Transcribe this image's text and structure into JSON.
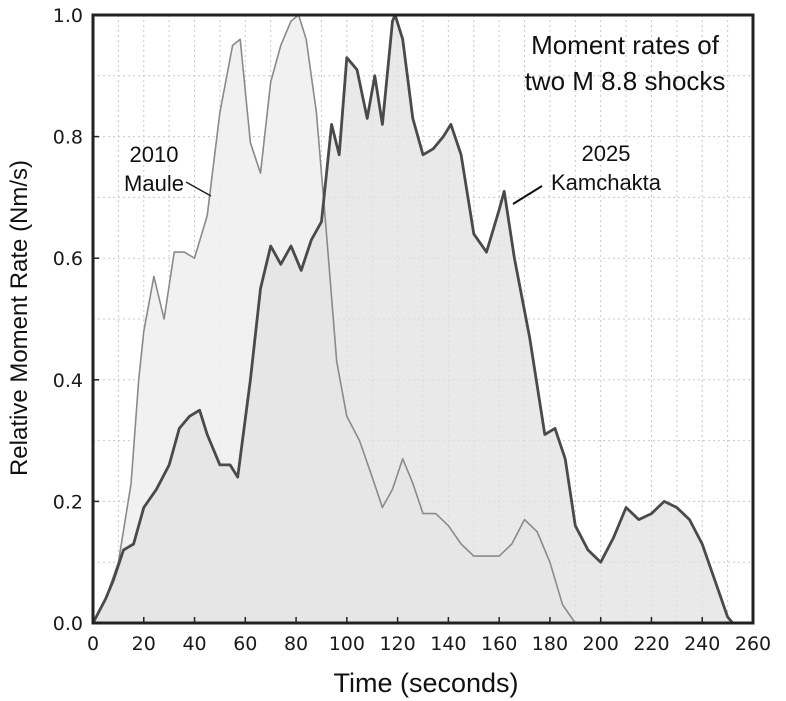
{
  "chart_data": {
    "type": "area",
    "title_lines": [
      "Moment rates of",
      "two M 8.8 shocks"
    ],
    "xlabel": "Time (seconds)",
    "ylabel": "Relative Moment Rate (Nm/s)",
    "xlim": [
      0,
      260
    ],
    "ylim": [
      0,
      1.0
    ],
    "x_ticks": [
      "0",
      "20",
      "40",
      "60",
      "80",
      "100",
      "120",
      "140",
      "160",
      "180",
      "200",
      "220",
      "240",
      "260"
    ],
    "y_ticks": [
      "0.0",
      "0.2",
      "0.4",
      "0.6",
      "0.8",
      "1.0"
    ],
    "grid": true,
    "series": [
      {
        "name": "2010 Maule",
        "label_lines": [
          "2010",
          "Maule"
        ],
        "color": "#8a8a8a",
        "fill": "#efefef",
        "x": [
          0,
          5,
          10,
          15,
          18,
          20,
          24,
          28,
          32,
          36,
          40,
          45,
          50,
          55,
          58,
          62,
          66,
          70,
          74,
          78,
          81,
          84,
          88,
          92,
          96,
          100,
          105,
          110,
          114,
          118,
          122,
          126,
          130,
          135,
          140,
          145,
          150,
          155,
          160,
          165,
          170,
          175,
          180,
          185,
          190
        ],
        "y": [
          0.0,
          0.04,
          0.1,
          0.23,
          0.4,
          0.48,
          0.57,
          0.5,
          0.61,
          0.61,
          0.6,
          0.67,
          0.84,
          0.95,
          0.96,
          0.79,
          0.74,
          0.89,
          0.95,
          0.99,
          1.0,
          0.96,
          0.84,
          0.64,
          0.43,
          0.34,
          0.3,
          0.24,
          0.19,
          0.22,
          0.27,
          0.23,
          0.18,
          0.18,
          0.16,
          0.13,
          0.11,
          0.11,
          0.11,
          0.13,
          0.17,
          0.15,
          0.1,
          0.03,
          0.0
        ]
      },
      {
        "name": "2025 Kamchakta",
        "label_lines": [
          "2025",
          "Kamchakta"
        ],
        "color": "#4a4a4a",
        "fill": "#e2e2e2",
        "x": [
          0,
          5,
          8,
          12,
          16,
          20,
          25,
          30,
          34,
          38,
          42,
          45,
          50,
          54,
          57,
          62,
          66,
          70,
          74,
          78,
          80,
          82,
          86,
          90,
          94,
          97,
          100,
          104,
          108,
          111,
          114,
          118,
          119,
          122,
          126,
          130,
          134,
          138,
          141,
          145,
          150,
          155,
          160,
          162,
          166,
          172,
          178,
          182,
          186,
          190,
          195,
          200,
          205,
          210,
          215,
          220,
          225,
          230,
          235,
          240,
          245,
          250,
          252
        ],
        "y": [
          0.0,
          0.04,
          0.07,
          0.12,
          0.13,
          0.19,
          0.22,
          0.26,
          0.32,
          0.34,
          0.35,
          0.31,
          0.26,
          0.26,
          0.24,
          0.4,
          0.55,
          0.62,
          0.59,
          0.62,
          0.6,
          0.58,
          0.63,
          0.66,
          0.82,
          0.77,
          0.93,
          0.91,
          0.83,
          0.9,
          0.82,
          0.99,
          1.0,
          0.96,
          0.83,
          0.77,
          0.78,
          0.8,
          0.82,
          0.77,
          0.64,
          0.61,
          0.68,
          0.71,
          0.6,
          0.47,
          0.31,
          0.32,
          0.27,
          0.16,
          0.12,
          0.1,
          0.14,
          0.19,
          0.17,
          0.18,
          0.2,
          0.19,
          0.17,
          0.13,
          0.07,
          0.01,
          0.0
        ]
      }
    ]
  }
}
